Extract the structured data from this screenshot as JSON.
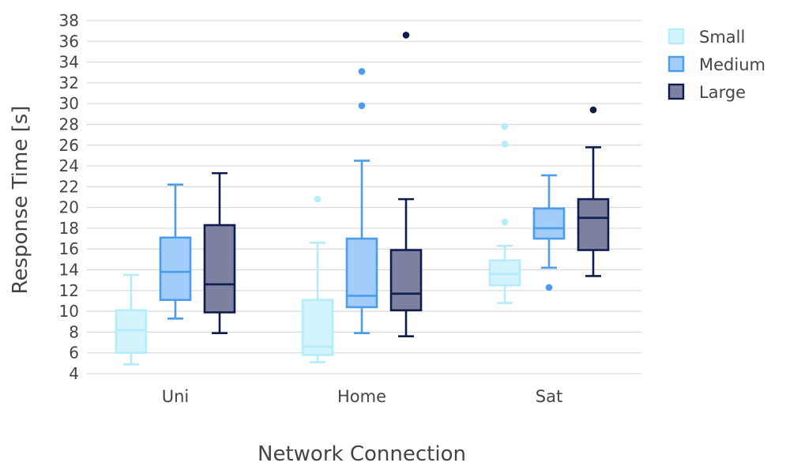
{
  "chart_data": {
    "type": "box",
    "xlabel": "Network Connection",
    "ylabel": "Response Time [s]",
    "ylim": [
      4,
      38
    ],
    "yticks": [
      4,
      6,
      8,
      10,
      12,
      14,
      16,
      18,
      20,
      22,
      24,
      26,
      28,
      30,
      32,
      34,
      36,
      38
    ],
    "grid": true,
    "legend_position": "top-right",
    "categories": [
      "Uni",
      "Home",
      "Sat"
    ],
    "series": [
      {
        "name": "Small",
        "color": "#b3ecfb",
        "fill": "#d3f3fd",
        "boxes": [
          {
            "whisker_low": 4.9,
            "q1": 6.0,
            "median": 8.2,
            "q3": 10.1,
            "whisker_high": 13.5,
            "outliers": []
          },
          {
            "whisker_low": 5.1,
            "q1": 5.8,
            "median": 6.6,
            "q3": 11.1,
            "whisker_high": 16.6,
            "outliers": [
              20.8
            ]
          },
          {
            "whisker_low": 10.8,
            "q1": 12.5,
            "median": 13.6,
            "q3": 14.9,
            "whisker_high": 16.3,
            "outliers": [
              18.6,
              26.1,
              27.8
            ]
          }
        ]
      },
      {
        "name": "Medium",
        "color": "#4c9cec",
        "fill": "#a2cdfa",
        "boxes": [
          {
            "whisker_low": 9.3,
            "q1": 11.1,
            "median": 13.8,
            "q3": 17.1,
            "whisker_high": 22.2,
            "outliers": []
          },
          {
            "whisker_low": 7.9,
            "q1": 10.4,
            "median": 11.5,
            "q3": 17.0,
            "whisker_high": 24.5,
            "outliers": [
              29.8,
              33.1
            ]
          },
          {
            "whisker_low": 14.2,
            "q1": 17.0,
            "median": 18.0,
            "q3": 19.9,
            "whisker_high": 23.1,
            "outliers": [
              12.3
            ]
          }
        ]
      },
      {
        "name": "Large",
        "color": "#0f1c4d",
        "fill": "#7c819f",
        "boxes": [
          {
            "whisker_low": 7.9,
            "q1": 9.9,
            "median": 12.6,
            "q3": 18.3,
            "whisker_high": 23.3,
            "outliers": []
          },
          {
            "whisker_low": 7.6,
            "q1": 10.1,
            "median": 11.7,
            "q3": 15.9,
            "whisker_high": 20.8,
            "outliers": [
              36.6
            ]
          },
          {
            "whisker_low": 13.4,
            "q1": 15.9,
            "median": 19.0,
            "q3": 20.8,
            "whisker_high": 25.8,
            "outliers": [
              29.4
            ]
          }
        ]
      }
    ]
  }
}
